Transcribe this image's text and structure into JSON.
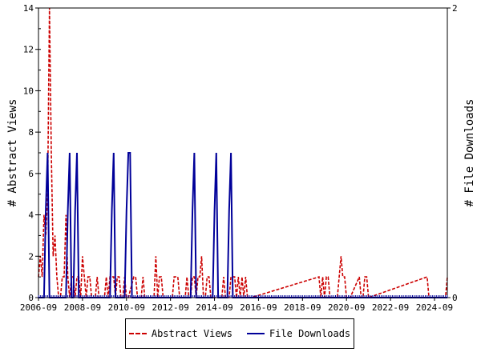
{
  "chart_data": {
    "type": "line",
    "xlabel": "",
    "y_left_label": "# Abstract Views",
    "y_right_label": "# File Downloads",
    "y_left_range": [
      0,
      14
    ],
    "y_right_range": [
      0,
      2
    ],
    "y_left_ticks": [
      "0",
      "2",
      "4",
      "6",
      "8",
      "10",
      "12",
      "14"
    ],
    "y_right_ticks": [
      "0",
      "2"
    ],
    "x_range": [
      "2006-09",
      "2025-04"
    ],
    "x_ticks": [
      "2006-09",
      "2008-09",
      "2010-09",
      "2012-09",
      "2014-09",
      "2016-09",
      "2018-09",
      "2020-09",
      "2022-09",
      "2024-09"
    ],
    "grid": false,
    "legend_position": "bottom",
    "series": [
      {
        "name": "Abstract Views",
        "axis": "left",
        "color": "#cc0000",
        "dash": "dashed",
        "points": [
          [
            "2006-09",
            1
          ],
          [
            "2006-10",
            2
          ],
          [
            "2006-11",
            1
          ],
          [
            "2006-12",
            4
          ],
          [
            "2007-01",
            3
          ],
          [
            "2007-02",
            5
          ],
          [
            "2007-03",
            14
          ],
          [
            "2007-04",
            7
          ],
          [
            "2007-05",
            2
          ],
          [
            "2007-06",
            3
          ],
          [
            "2007-07",
            1
          ],
          [
            "2007-08",
            0
          ],
          [
            "2007-09",
            0
          ],
          [
            "2007-10",
            1
          ],
          [
            "2007-11",
            1
          ],
          [
            "2007-12",
            4
          ],
          [
            "2008-01",
            1
          ],
          [
            "2008-02",
            0
          ],
          [
            "2008-03",
            1
          ],
          [
            "2008-04",
            1
          ],
          [
            "2008-05",
            0
          ],
          [
            "2008-06",
            1
          ],
          [
            "2008-07",
            1
          ],
          [
            "2008-08",
            0
          ],
          [
            "2008-09",
            2
          ],
          [
            "2008-10",
            1
          ],
          [
            "2008-11",
            0
          ],
          [
            "2008-12",
            1
          ],
          [
            "2009-01",
            1
          ],
          [
            "2009-02",
            0
          ],
          [
            "2009-03",
            0
          ],
          [
            "2009-04",
            0
          ],
          [
            "2009-05",
            1
          ],
          [
            "2009-06",
            0
          ],
          [
            "2009-07",
            0
          ],
          [
            "2009-08",
            0
          ],
          [
            "2009-09",
            0
          ],
          [
            "2009-10",
            1
          ],
          [
            "2009-11",
            0
          ],
          [
            "2009-12",
            1
          ],
          [
            "2010-01",
            1
          ],
          [
            "2010-02",
            1
          ],
          [
            "2010-03",
            0
          ],
          [
            "2010-04",
            1
          ],
          [
            "2010-05",
            1
          ],
          [
            "2010-06",
            0
          ],
          [
            "2010-07",
            0
          ],
          [
            "2010-08",
            1
          ],
          [
            "2010-09",
            0
          ],
          [
            "2010-10",
            0
          ],
          [
            "2011-01",
            1
          ],
          [
            "2011-02",
            1
          ],
          [
            "2011-03",
            0
          ],
          [
            "2011-04",
            0
          ],
          [
            "2011-05",
            0
          ],
          [
            "2011-06",
            1
          ],
          [
            "2011-07",
            0
          ],
          [
            "2011-08",
            0
          ],
          [
            "2011-09",
            0
          ],
          [
            "2011-10",
            0
          ],
          [
            "2011-11",
            0
          ],
          [
            "2011-12",
            0
          ],
          [
            "2012-01",
            2
          ],
          [
            "2012-02",
            0
          ],
          [
            "2012-03",
            1
          ],
          [
            "2012-04",
            1
          ],
          [
            "2012-05",
            0
          ],
          [
            "2012-06",
            0
          ],
          [
            "2012-07",
            0
          ],
          [
            "2012-08",
            0
          ],
          [
            "2012-09",
            0
          ],
          [
            "2012-10",
            0
          ],
          [
            "2012-11",
            1
          ],
          [
            "2012-12",
            1
          ],
          [
            "2013-01",
            1
          ],
          [
            "2013-02",
            0
          ],
          [
            "2013-03",
            0
          ],
          [
            "2013-04",
            0
          ],
          [
            "2013-05",
            0
          ],
          [
            "2013-06",
            1
          ],
          [
            "2013-07",
            0
          ],
          [
            "2013-08",
            0
          ],
          [
            "2013-09",
            1
          ],
          [
            "2013-10",
            1
          ],
          [
            "2013-11",
            0
          ],
          [
            "2013-12",
            1
          ],
          [
            "2014-01",
            1
          ],
          [
            "2014-02",
            2
          ],
          [
            "2014-03",
            0
          ],
          [
            "2014-04",
            0
          ],
          [
            "2014-05",
            1
          ],
          [
            "2014-06",
            1
          ],
          [
            "2014-07",
            0
          ],
          [
            "2014-08",
            0
          ],
          [
            "2014-09",
            0
          ],
          [
            "2014-10",
            0
          ],
          [
            "2014-11",
            0
          ],
          [
            "2014-12",
            0
          ],
          [
            "2015-01",
            0
          ],
          [
            "2015-02",
            1
          ],
          [
            "2015-03",
            0
          ],
          [
            "2015-04",
            0
          ],
          [
            "2015-05",
            0
          ],
          [
            "2015-06",
            1
          ],
          [
            "2015-07",
            1
          ],
          [
            "2015-08",
            1
          ],
          [
            "2015-09",
            0
          ],
          [
            "2015-10",
            1
          ],
          [
            "2015-11",
            0
          ],
          [
            "2015-12",
            1
          ],
          [
            "2016-01",
            0
          ],
          [
            "2016-02",
            1
          ],
          [
            "2016-03",
            0
          ],
          [
            "2016-04",
            0
          ],
          [
            "2016-05",
            0
          ],
          [
            "2019-06",
            1
          ],
          [
            "2019-07",
            0
          ],
          [
            "2019-08",
            1
          ],
          [
            "2019-09",
            0
          ],
          [
            "2019-10",
            1
          ],
          [
            "2019-11",
            1
          ],
          [
            "2019-12",
            0
          ],
          [
            "2020-01",
            0
          ],
          [
            "2020-02",
            0
          ],
          [
            "2020-03",
            0
          ],
          [
            "2020-04",
            0
          ],
          [
            "2020-05",
            1
          ],
          [
            "2020-06",
            2
          ],
          [
            "2020-07",
            1
          ],
          [
            "2020-08",
            1
          ],
          [
            "2020-09",
            0
          ],
          [
            "2020-10",
            0
          ],
          [
            "2020-11",
            0
          ],
          [
            "2021-04",
            1
          ],
          [
            "2021-05",
            0
          ],
          [
            "2021-06",
            0
          ],
          [
            "2021-07",
            1
          ],
          [
            "2021-08",
            1
          ],
          [
            "2021-09",
            0
          ],
          [
            "2024-05",
            1
          ],
          [
            "2024-06",
            0
          ],
          [
            "2025-03",
            0
          ],
          [
            "2025-04",
            1
          ]
        ]
      },
      {
        "name": "File Downloads",
        "axis": "right",
        "color": "#000099",
        "dash": "solid",
        "points": [
          [
            "2006-09",
            0
          ],
          [
            "2006-12",
            0
          ],
          [
            "2007-01",
            0.6
          ],
          [
            "2007-02",
            1
          ],
          [
            "2007-03",
            0
          ],
          [
            "2007-12",
            0
          ],
          [
            "2008-01",
            0.6
          ],
          [
            "2008-02",
            1
          ],
          [
            "2008-03",
            0
          ],
          [
            "2008-04",
            0
          ],
          [
            "2008-05",
            0.6
          ],
          [
            "2008-06",
            1
          ],
          [
            "2008-07",
            0
          ],
          [
            "2009-12",
            0
          ],
          [
            "2010-01",
            0.6
          ],
          [
            "2010-02",
            1
          ],
          [
            "2010-03",
            0
          ],
          [
            "2010-08",
            0
          ],
          [
            "2010-09",
            0.6
          ],
          [
            "2010-10",
            1
          ],
          [
            "2010-11",
            1
          ],
          [
            "2010-12",
            0
          ],
          [
            "2013-08",
            0
          ],
          [
            "2013-09",
            0.6
          ],
          [
            "2013-10",
            1
          ],
          [
            "2013-11",
            0
          ],
          [
            "2014-08",
            0
          ],
          [
            "2014-09",
            0.6
          ],
          [
            "2014-10",
            1
          ],
          [
            "2014-11",
            0
          ],
          [
            "2015-04",
            0
          ],
          [
            "2015-05",
            0.6
          ],
          [
            "2015-06",
            1
          ],
          [
            "2015-07",
            0
          ],
          [
            "2025-04",
            0
          ]
        ]
      }
    ]
  }
}
